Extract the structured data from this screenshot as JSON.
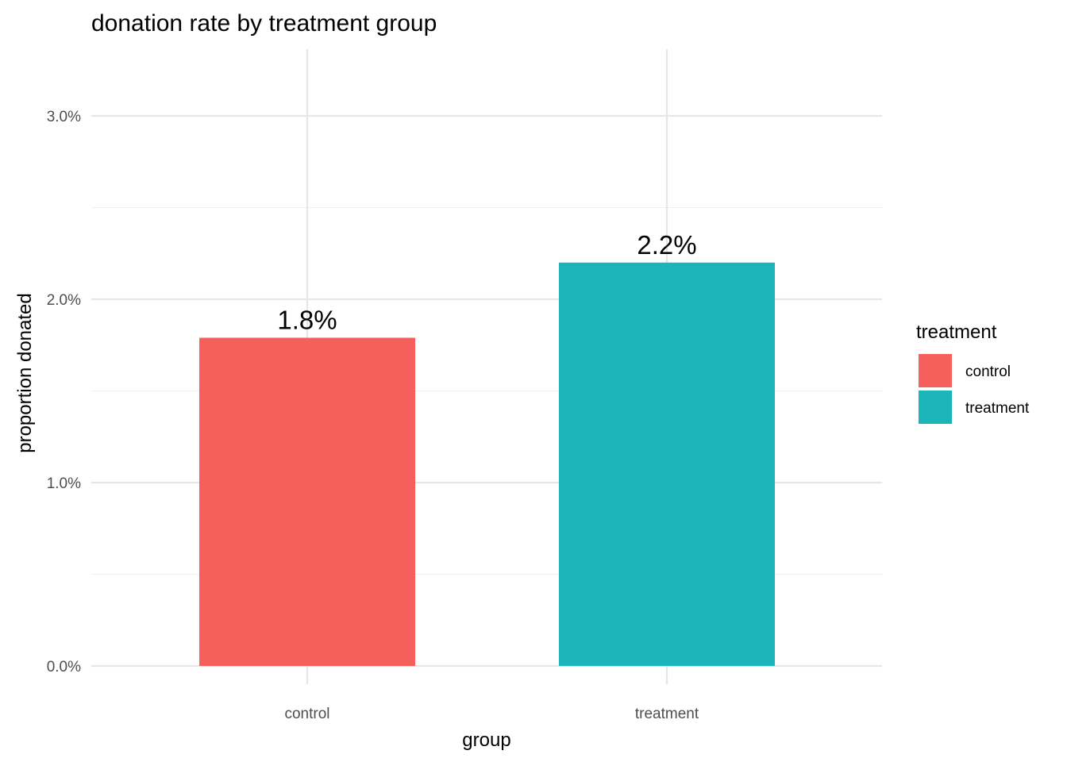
{
  "chart_data": {
    "type": "bar",
    "title": "donation rate by treatment group",
    "xlabel": "group",
    "ylabel": "proportion donated",
    "categories": [
      "control",
      "treatment"
    ],
    "values": [
      0.0179,
      0.022
    ],
    "data_labels": [
      "1.8%",
      "2.2%"
    ],
    "colors": [
      "#F5605C",
      "#1BB4B8"
    ],
    "ylim": [
      0,
      0.03
    ],
    "y_major_ticks": [
      0,
      0.01,
      0.02,
      0.03
    ],
    "y_tick_labels": [
      "0.0%",
      "1.0%",
      "2.0%",
      "3.0%"
    ],
    "y_minor_ticks": [
      0.005,
      0.015,
      0.025
    ],
    "grid": true,
    "legend": {
      "title": "treatment",
      "placement": "right",
      "entries": [
        {
          "label": "control",
          "color": "#F5605C"
        },
        {
          "label": "treatment",
          "color": "#1BB4B8"
        }
      ]
    }
  }
}
